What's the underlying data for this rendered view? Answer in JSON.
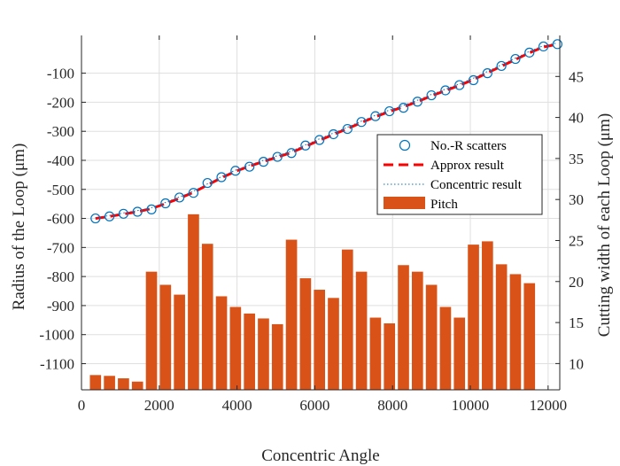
{
  "chart_data": {
    "type": "line",
    "xlabel": "Concentric Angle",
    "ylabel_left": "Radius of the Loop (μm)",
    "ylabel_right": "Cutting width of each Loop (μm)",
    "xlim": [
      0,
      12300
    ],
    "ylim_left": [
      -1190,
      30
    ],
    "ylim_right": [
      6.8,
      50
    ],
    "x_ticks": [
      0,
      2000,
      4000,
      6000,
      8000,
      10000,
      12000
    ],
    "y_ticks_left": [
      -100,
      -200,
      -300,
      -400,
      -500,
      -600,
      -700,
      -800,
      -900,
      -1000,
      -1100
    ],
    "y_ticks_right": [
      10,
      15,
      20,
      25,
      30,
      35,
      40,
      45
    ],
    "grid": true,
    "legend_position": "right",
    "legend": [
      "No.-R scatters",
      "Approx result",
      "Concentric result",
      "Pitch"
    ],
    "colors": {
      "scatter": "#0072BD",
      "approx": "#FF0000",
      "concentric": "#0072BD",
      "pitch": "#D95319",
      "axis": "#262626",
      "grid": "#DFDFDF"
    },
    "series": [
      {
        "name": "No.-R scatters",
        "axis": "left",
        "style": "open-circle",
        "x": [
          360,
          720,
          1080,
          1440,
          1800,
          2160,
          2520,
          2880,
          3240,
          3600,
          3960,
          4320,
          4680,
          5040,
          5400,
          5760,
          6120,
          6480,
          6840,
          7200,
          7560,
          7920,
          8280,
          8640,
          9000,
          9360,
          9720,
          10080,
          10440,
          10800,
          11160,
          11520,
          11880,
          12240
        ],
        "y": [
          -600,
          -593,
          -584,
          -577,
          -569,
          -548,
          -528,
          -512,
          -478,
          -458,
          -436,
          -422,
          -405,
          -388,
          -375,
          -349,
          -330,
          -310,
          -292,
          -268,
          -248,
          -231,
          -219,
          -198,
          -176,
          -159,
          -141,
          -124,
          -100,
          -75,
          -51,
          -29,
          -8,
          0
        ]
      },
      {
        "name": "Approx result",
        "axis": "left",
        "style": "dashed-line",
        "x": [
          360,
          720,
          1080,
          1440,
          1800,
          2160,
          2520,
          2880,
          3240,
          3600,
          3960,
          4320,
          4680,
          5040,
          5400,
          5760,
          6120,
          6480,
          6840,
          7200,
          7560,
          7920,
          8280,
          8640,
          9000,
          9360,
          9720,
          10080,
          10440,
          10800,
          11160,
          11520,
          11880,
          12240
        ],
        "y": [
          -600,
          -593,
          -585,
          -577,
          -566,
          -549,
          -531,
          -510,
          -485,
          -460,
          -438,
          -420,
          -404,
          -389,
          -373,
          -352,
          -331,
          -311,
          -291,
          -270,
          -250,
          -232,
          -216,
          -198,
          -178,
          -160,
          -142,
          -122,
          -99,
          -76,
          -53,
          -30,
          -10,
          0
        ]
      },
      {
        "name": "Concentric result",
        "axis": "left",
        "style": "dotted-line",
        "x": [
          360,
          720,
          1080,
          1440,
          1800,
          2160,
          2520,
          2880,
          3240,
          3600,
          3960,
          4320,
          4680,
          5040,
          5400,
          5760,
          6120,
          6480,
          6840,
          7200,
          7560,
          7920,
          8280,
          8640,
          9000,
          9360,
          9720,
          10080,
          10440,
          10800,
          11160,
          11520,
          11880,
          12240
        ],
        "y": [
          -598,
          -590,
          -581,
          -573,
          -563,
          -545,
          -526,
          -506,
          -481,
          -456,
          -434,
          -416,
          -400,
          -384,
          -368,
          -347,
          -326,
          -306,
          -286,
          -265,
          -245,
          -227,
          -211,
          -193,
          -173,
          -155,
          -137,
          -117,
          -94,
          -71,
          -48,
          -25,
          -5,
          4
        ]
      },
      {
        "name": "Pitch",
        "axis": "right",
        "style": "bar",
        "x": [
          360,
          720,
          1080,
          1440,
          1800,
          2160,
          2520,
          2880,
          3240,
          3600,
          3960,
          4320,
          4680,
          5040,
          5400,
          5760,
          6120,
          6480,
          6840,
          7200,
          7560,
          7920,
          8280,
          8640,
          9000,
          9360,
          9720,
          10080,
          10440,
          10800,
          11160,
          11520
        ],
        "values": [
          8.6,
          8.5,
          8.2,
          7.8,
          21.2,
          19.6,
          18.4,
          28.2,
          24.6,
          18.2,
          16.9,
          16.1,
          15.5,
          14.8,
          25.1,
          20.4,
          19.0,
          18.0,
          23.9,
          21.2,
          15.6,
          14.9,
          22.0,
          21.2,
          19.6,
          16.9,
          15.6,
          24.5,
          24.9,
          22.1,
          20.9,
          19.8
        ]
      }
    ]
  }
}
